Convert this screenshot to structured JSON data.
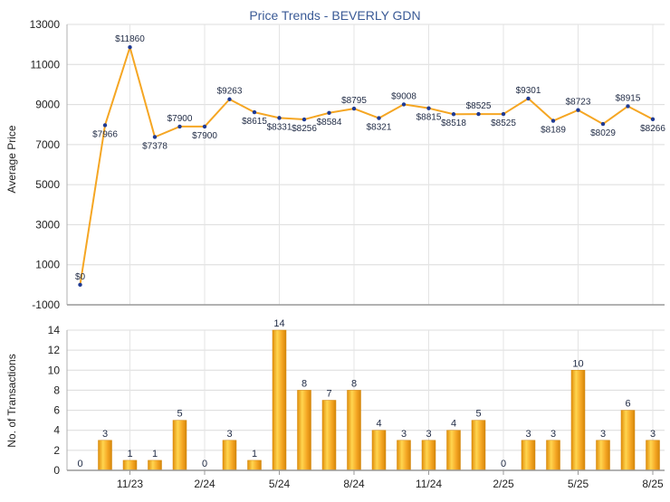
{
  "chart_data": [
    {
      "type": "line",
      "title": "Price Trends - BEVERLY GDN",
      "ylabel": "Average Price",
      "xlabel": "",
      "ylim": [
        -1000,
        13000
      ],
      "yticks": [
        -1000,
        1000,
        3000,
        5000,
        7000,
        9000,
        11000,
        13000
      ],
      "grid": true,
      "color": "#F5A623",
      "x": [
        "9/23",
        "10/23",
        "11/23",
        "12/23",
        "1/24",
        "2/24",
        "3/24",
        "4/24",
        "5/24",
        "6/24",
        "7/24",
        "8/24",
        "9/24",
        "10/24",
        "11/24",
        "12/24",
        "1/25",
        "2/25",
        "3/25",
        "4/25",
        "5/25",
        "6/25",
        "7/25",
        "8/25"
      ],
      "values": [
        0,
        7966,
        11860,
        7378,
        7900,
        7900,
        9263,
        8615,
        8331,
        8256,
        8584,
        8795,
        8321,
        9008,
        8815,
        8518,
        8525,
        8525,
        9301,
        8189,
        8723,
        8029,
        8915,
        8266
      ],
      "data_labels": [
        "$0",
        "$7966",
        "$11860",
        "$7378",
        "$7900",
        "$7900",
        "$9263",
        "$8615",
        "$8331",
        "$8256",
        "$8584",
        "$8795",
        "$8321",
        "$9008",
        "$8815",
        "$8518",
        "$8525",
        "$8525",
        "$9301",
        "$8189",
        "$8723",
        "$8029",
        "$8915",
        "$8266"
      ]
    },
    {
      "type": "bar",
      "ylabel": "No. of Transactions",
      "xlabel": "",
      "ylim": [
        0,
        14
      ],
      "yticks": [
        0,
        2,
        4,
        6,
        8,
        10,
        12,
        14
      ],
      "grid": true,
      "color": "#F5A623",
      "x": [
        "9/23",
        "10/23",
        "11/23",
        "12/23",
        "1/24",
        "2/24",
        "3/24",
        "4/24",
        "5/24",
        "6/24",
        "7/24",
        "8/24",
        "9/24",
        "10/24",
        "11/24",
        "12/24",
        "1/25",
        "2/25",
        "3/25",
        "4/25",
        "5/25",
        "6/25",
        "7/25",
        "8/25"
      ],
      "values": [
        0,
        3,
        1,
        1,
        5,
        0,
        3,
        1,
        14,
        8,
        7,
        8,
        4,
        3,
        3,
        4,
        5,
        0,
        3,
        3,
        10,
        3,
        6,
        3
      ],
      "xtick_labels": [
        "11/23",
        "2/24",
        "5/24",
        "8/24",
        "11/24",
        "2/25",
        "5/25",
        "8/25"
      ]
    }
  ]
}
